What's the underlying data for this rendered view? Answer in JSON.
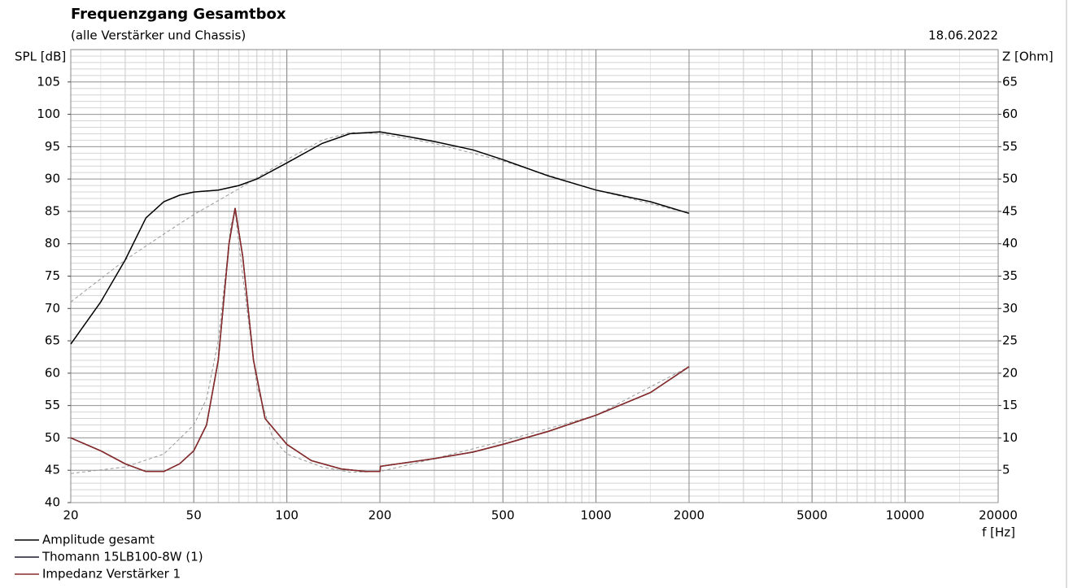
{
  "chart_data": {
    "type": "line",
    "title": "Frequenzgang Gesamtbox",
    "subtitle": "(alle Verstärker und Chassis)",
    "date": "18.06.2022",
    "ylabel": "SPL [dB]",
    "y2label": "Z [Ohm]",
    "xlabel": "f [Hz]",
    "xscale": "log",
    "grid": true,
    "minor_grid": true,
    "legend": "bottom-left",
    "xlim": [
      20,
      20000
    ],
    "xticks": [
      20,
      50,
      100,
      200,
      500,
      1000,
      2000,
      5000,
      10000,
      20000
    ],
    "ylim": [
      40,
      110
    ],
    "yticks": [
      40,
      45,
      50,
      55,
      60,
      65,
      70,
      75,
      80,
      85,
      90,
      95,
      100,
      105
    ],
    "y2lim": [
      0,
      70
    ],
    "y2ticks": [
      5,
      10,
      15,
      20,
      25,
      30,
      35,
      40,
      45,
      50,
      55,
      60,
      65
    ],
    "series": [
      {
        "x": [
          20,
          30,
          40,
          50,
          70,
          100,
          130,
          160,
          200,
          300,
          500,
          1000,
          2000
        ],
        "values": [
          71,
          77.5,
          81.5,
          84.5,
          88.5,
          93,
          96,
          97.2,
          97,
          95.5,
          92.8,
          88.3,
          84.7
        ],
        "color": "#999999",
        "dash": true
      },
      {
        "x": [
          20,
          30,
          40,
          50,
          55,
          60,
          66,
          68,
          72,
          80,
          90,
          100,
          130,
          160,
          200,
          300,
          500,
          1000,
          2000
        ],
        "values": [
          4.5,
          5.5,
          7.5,
          12,
          16,
          25,
          43,
          45,
          35,
          18,
          10,
          7.5,
          5.5,
          4.7,
          4.8,
          6.8,
          9.5,
          13.5,
          21
        ],
        "color": "#999999",
        "dash": true,
        "axis": "y2"
      },
      {
        "name": "Amplitude gesamt",
        "x": [
          20,
          25,
          30,
          35,
          40,
          45,
          50,
          60,
          70,
          80,
          100,
          130,
          160,
          200,
          250,
          300,
          400,
          500,
          700,
          1000,
          1500,
          2000
        ],
        "values": [
          64.5,
          71,
          77.5,
          84,
          86.5,
          87.5,
          88,
          88.3,
          89,
          90,
          92.5,
          95.5,
          97,
          97.3,
          96.5,
          95.8,
          94.5,
          93,
          90.5,
          88.3,
          86.5,
          84.7
        ],
        "color": "#000000"
      },
      {
        "name": "Thomann 15LB100-8W (1)",
        "x": [
          20,
          25,
          30,
          35,
          40,
          45,
          50,
          55,
          60,
          65,
          68,
          72,
          78,
          85,
          100,
          120,
          150,
          180,
          200,
          201,
          300,
          400,
          500,
          700,
          1000,
          1500,
          2000
        ],
        "values": [
          10,
          8,
          6,
          4.8,
          4.8,
          6,
          8,
          12,
          22,
          40,
          45.5,
          38,
          22,
          13,
          9,
          6.5,
          5.2,
          4.8,
          4.8,
          5.6,
          6.8,
          7.8,
          9,
          11,
          13.5,
          17,
          21
        ],
        "color": "#1a1a2e",
        "axis": "y2"
      },
      {
        "name": "Impedanz Verstärker 1",
        "x": [
          20,
          25,
          30,
          35,
          40,
          45,
          50,
          55,
          60,
          65,
          68,
          72,
          78,
          85,
          100,
          120,
          150,
          180,
          200,
          201,
          300,
          400,
          500,
          700,
          1000,
          1500,
          2000
        ],
        "values": [
          10,
          8,
          6,
          4.8,
          4.8,
          6,
          8,
          12,
          22,
          40,
          45.5,
          38,
          22,
          13,
          9,
          6.5,
          5.2,
          4.8,
          4.8,
          5.6,
          6.8,
          7.8,
          9,
          11,
          13.5,
          17,
          21
        ],
        "color": "#8b2a2a",
        "axis": "y2"
      }
    ]
  }
}
